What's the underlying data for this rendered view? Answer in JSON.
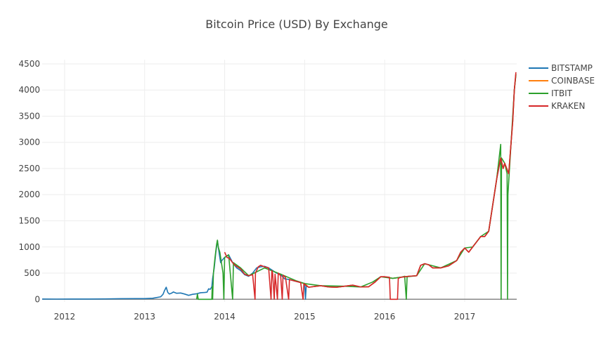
{
  "chart_data": {
    "type": "line",
    "title": "Bitcoin Price (USD) By Exchange",
    "xlabel": "",
    "ylabel": "",
    "xlim": [
      2011.72,
      2017.65
    ],
    "ylim": [
      -50,
      4580
    ],
    "x_ticks": [
      {
        "value": 2012,
        "label": "2012"
      },
      {
        "value": 2013,
        "label": "2013"
      },
      {
        "value": 2014,
        "label": "2014"
      },
      {
        "value": 2015,
        "label": "2015"
      },
      {
        "value": 2016,
        "label": "2016"
      },
      {
        "value": 2017,
        "label": "2017"
      }
    ],
    "y_ticks": [
      {
        "value": 0,
        "label": "0"
      },
      {
        "value": 500,
        "label": "500"
      },
      {
        "value": 1000,
        "label": "1000"
      },
      {
        "value": 1500,
        "label": "1500"
      },
      {
        "value": 2000,
        "label": "2000"
      },
      {
        "value": 2500,
        "label": "2500"
      },
      {
        "value": 3000,
        "label": "3000"
      },
      {
        "value": 3500,
        "label": "3500"
      },
      {
        "value": 4000,
        "label": "4000"
      },
      {
        "value": 4500,
        "label": "4500"
      }
    ],
    "grid": true,
    "legend_position": "top-right",
    "series": [
      {
        "name": "BITSTAMP",
        "color": "#1f77b4",
        "points": [
          [
            2011.72,
            4.8
          ],
          [
            2011.9,
            3.5
          ],
          [
            2012.1,
            5
          ],
          [
            2012.3,
            5
          ],
          [
            2012.5,
            7
          ],
          [
            2012.7,
            11
          ],
          [
            2012.9,
            13
          ],
          [
            2013.0,
            13.5
          ],
          [
            2013.1,
            20
          ],
          [
            2013.2,
            47
          ],
          [
            2013.23,
            95
          ],
          [
            2013.25,
            170
          ],
          [
            2013.27,
            230
          ],
          [
            2013.29,
            130
          ],
          [
            2013.31,
            100
          ],
          [
            2013.34,
            120
          ],
          [
            2013.36,
            140
          ],
          [
            2013.4,
            115
          ],
          [
            2013.45,
            120
          ],
          [
            2013.5,
            100
          ],
          [
            2013.55,
            75
          ],
          [
            2013.6,
            95
          ],
          [
            2013.65,
            105
          ],
          [
            2013.7,
            125
          ],
          [
            2013.75,
            130
          ],
          [
            2013.78,
            135
          ],
          [
            2013.8,
            200
          ],
          [
            2013.82,
            190
          ],
          [
            2013.84,
            240
          ],
          [
            2013.85,
            400
          ],
          [
            2013.87,
            600
          ],
          [
            2013.89,
            900
          ],
          [
            2013.91,
            1120
          ],
          [
            2013.93,
            900
          ],
          [
            2013.95,
            700
          ],
          [
            2013.97,
            750
          ],
          [
            2014.0,
            800
          ],
          [
            2014.05,
            850
          ],
          [
            2014.1,
            700
          ],
          [
            2014.15,
            600
          ],
          [
            2014.2,
            550
          ],
          [
            2014.25,
            470
          ],
          [
            2014.3,
            440
          ],
          [
            2014.35,
            500
          ],
          [
            2014.4,
            600
          ],
          [
            2014.45,
            620
          ],
          [
            2014.5,
            630
          ],
          [
            2014.55,
            600
          ],
          [
            2014.6,
            550
          ],
          [
            2014.65,
            500
          ],
          [
            2014.7,
            470
          ],
          [
            2014.75,
            390
          ],
          [
            2014.8,
            380
          ],
          [
            2014.85,
            360
          ],
          [
            2014.9,
            340
          ],
          [
            2014.95,
            320
          ],
          [
            2015.0,
            300
          ],
          [
            2015.01,
            1
          ],
          [
            2015.02,
            260
          ],
          [
            2015.05,
            230
          ],
          [
            2015.1,
            240
          ],
          [
            2015.2,
            260
          ],
          [
            2015.3,
            235
          ],
          [
            2015.4,
            230
          ],
          [
            2015.5,
            250
          ],
          [
            2015.6,
            270
          ],
          [
            2015.7,
            235
          ],
          [
            2015.8,
            240
          ],
          [
            2015.88,
            330
          ],
          [
            2015.95,
            430
          ],
          [
            2016.0,
            430
          ],
          [
            2016.1,
            400
          ],
          [
            2016.2,
            420
          ],
          [
            2016.3,
            440
          ],
          [
            2016.4,
            450
          ],
          [
            2016.45,
            650
          ],
          [
            2016.5,
            680
          ],
          [
            2016.55,
            660
          ],
          [
            2016.6,
            600
          ],
          [
            2016.7,
            600
          ],
          [
            2016.8,
            640
          ],
          [
            2016.9,
            740
          ],
          [
            2016.95,
            900
          ],
          [
            2017.0,
            980
          ],
          [
            2017.05,
            900
          ],
          [
            2017.1,
            1000
          ],
          [
            2017.15,
            1100
          ],
          [
            2017.2,
            1200
          ],
          [
            2017.25,
            1200
          ],
          [
            2017.3,
            1300
          ],
          [
            2017.35,
            1800
          ],
          [
            2017.4,
            2300
          ],
          [
            2017.45,
            2700
          ],
          [
            2017.48,
            2500
          ],
          [
            2017.5,
            2600
          ],
          [
            2017.55,
            2400
          ],
          [
            2017.58,
            3000
          ],
          [
            2017.6,
            3400
          ],
          [
            2017.62,
            4000
          ],
          [
            2017.64,
            4300
          ]
        ]
      },
      {
        "name": "COINBASE",
        "color": "#ff7f0e",
        "points": [
          [
            2014.95,
            320
          ],
          [
            2015.0,
            300
          ],
          [
            2015.05,
            230
          ],
          [
            2015.1,
            240
          ],
          [
            2015.2,
            260
          ],
          [
            2015.3,
            235
          ],
          [
            2015.4,
            230
          ],
          [
            2015.5,
            250
          ],
          [
            2015.6,
            270
          ],
          [
            2015.7,
            235
          ],
          [
            2015.8,
            240
          ],
          [
            2015.88,
            330
          ],
          [
            2015.95,
            430
          ],
          [
            2016.0,
            430
          ],
          [
            2016.1,
            400
          ],
          [
            2016.2,
            420
          ],
          [
            2016.3,
            440
          ],
          [
            2016.4,
            450
          ],
          [
            2016.45,
            650
          ],
          [
            2016.5,
            680
          ],
          [
            2016.55,
            660
          ],
          [
            2016.6,
            600
          ],
          [
            2016.7,
            600
          ],
          [
            2016.8,
            640
          ],
          [
            2016.9,
            740
          ],
          [
            2016.95,
            900
          ],
          [
            2017.0,
            980
          ],
          [
            2017.05,
            900
          ],
          [
            2017.1,
            1000
          ],
          [
            2017.15,
            1100
          ],
          [
            2017.2,
            1200
          ],
          [
            2017.25,
            1200
          ],
          [
            2017.3,
            1300
          ],
          [
            2017.35,
            1800
          ],
          [
            2017.4,
            2300
          ],
          [
            2017.42,
            2550
          ],
          [
            2017.45,
            2700
          ],
          [
            2017.48,
            2500
          ],
          [
            2017.5,
            2600
          ],
          [
            2017.55,
            2400
          ],
          [
            2017.58,
            3000
          ],
          [
            2017.6,
            3400
          ],
          [
            2017.62,
            4000
          ],
          [
            2017.64,
            4300
          ]
        ]
      },
      {
        "name": "ITBIT",
        "color": "#2ca02c",
        "points": [
          [
            2013.65,
            0
          ],
          [
            2013.66,
            100
          ],
          [
            2013.67,
            0
          ],
          [
            2013.84,
            0
          ],
          [
            2013.845,
            240
          ],
          [
            2013.85,
            0
          ],
          [
            2013.86,
            500
          ],
          [
            2013.88,
            800
          ],
          [
            2013.9,
            1050
          ],
          [
            2013.91,
            1130
          ],
          [
            2013.92,
            1000
          ],
          [
            2013.94,
            900
          ],
          [
            2013.96,
            700
          ],
          [
            2013.98,
            500
          ],
          [
            2013.99,
            0
          ],
          [
            2014.0,
            800
          ],
          [
            2014.05,
            850
          ],
          [
            2014.1,
            0
          ],
          [
            2014.11,
            700
          ],
          [
            2014.2,
            600
          ],
          [
            2014.3,
            450
          ],
          [
            2014.5,
            600
          ],
          [
            2014.7,
            480
          ],
          [
            2014.9,
            350
          ],
          [
            2015.0,
            300
          ],
          [
            2015.2,
            260
          ],
          [
            2015.5,
            250
          ],
          [
            2015.7,
            235
          ],
          [
            2015.85,
            330
          ],
          [
            2015.95,
            430
          ],
          [
            2016.1,
            400
          ],
          [
            2016.2,
            420
          ],
          [
            2016.25,
            440
          ],
          [
            2016.27,
            0
          ],
          [
            2016.28,
            430
          ],
          [
            2016.4,
            450
          ],
          [
            2016.5,
            680
          ],
          [
            2016.7,
            600
          ],
          [
            2016.9,
            740
          ],
          [
            2017.0,
            980
          ],
          [
            2017.1,
            1000
          ],
          [
            2017.2,
            1200
          ],
          [
            2017.3,
            1300
          ],
          [
            2017.35,
            1800
          ],
          [
            2017.4,
            2300
          ],
          [
            2017.45,
            2960
          ],
          [
            2017.455,
            0
          ],
          [
            2017.46,
            2700
          ],
          [
            2017.5,
            2600
          ],
          [
            2017.53,
            2400
          ],
          [
            2017.535,
            0
          ],
          [
            2017.54,
            2000
          ],
          [
            2017.58,
            3000
          ],
          [
            2017.62,
            4000
          ],
          [
            2017.64,
            4300
          ]
        ]
      },
      {
        "name": "KRAKEN",
        "color": "#d62728",
        "points": [
          [
            2014.0,
            900
          ],
          [
            2014.03,
            800
          ],
          [
            2014.06,
            780
          ],
          [
            2014.1,
            700
          ],
          [
            2014.13,
            650
          ],
          [
            2014.16,
            620
          ],
          [
            2014.2,
            580
          ],
          [
            2014.25,
            480
          ],
          [
            2014.3,
            450
          ],
          [
            2014.35,
            470
          ],
          [
            2014.38,
            0
          ],
          [
            2014.385,
            500
          ],
          [
            2014.42,
            620
          ],
          [
            2014.45,
            650
          ],
          [
            2014.5,
            620
          ],
          [
            2014.55,
            600
          ],
          [
            2014.58,
            0
          ],
          [
            2014.59,
            550
          ],
          [
            2014.6,
            500
          ],
          [
            2014.62,
            0
          ],
          [
            2014.63,
            480
          ],
          [
            2014.66,
            0
          ],
          [
            2014.67,
            500
          ],
          [
            2014.7,
            450
          ],
          [
            2014.72,
            0
          ],
          [
            2014.73,
            460
          ],
          [
            2014.76,
            420
          ],
          [
            2014.8,
            0
          ],
          [
            2014.81,
            380
          ],
          [
            2014.85,
            360
          ],
          [
            2014.9,
            340
          ],
          [
            2014.95,
            320
          ],
          [
            2014.98,
            0
          ],
          [
            2014.99,
            300
          ],
          [
            2015.02,
            260
          ],
          [
            2015.05,
            230
          ],
          [
            2015.1,
            240
          ],
          [
            2015.2,
            260
          ],
          [
            2015.3,
            235
          ],
          [
            2015.4,
            230
          ],
          [
            2015.5,
            250
          ],
          [
            2015.6,
            270
          ],
          [
            2015.7,
            235
          ],
          [
            2015.8,
            240
          ],
          [
            2015.88,
            330
          ],
          [
            2015.95,
            430
          ],
          [
            2016.0,
            430
          ],
          [
            2016.06,
            420
          ],
          [
            2016.07,
            0
          ],
          [
            2016.16,
            0
          ],
          [
            2016.17,
            400
          ],
          [
            2016.2,
            420
          ],
          [
            2016.3,
            440
          ],
          [
            2016.4,
            450
          ],
          [
            2016.45,
            650
          ],
          [
            2016.5,
            680
          ],
          [
            2016.55,
            660
          ],
          [
            2016.6,
            600
          ],
          [
            2016.7,
            600
          ],
          [
            2016.8,
            640
          ],
          [
            2016.9,
            740
          ],
          [
            2016.95,
            900
          ],
          [
            2017.0,
            980
          ],
          [
            2017.05,
            900
          ],
          [
            2017.1,
            1000
          ],
          [
            2017.15,
            1100
          ],
          [
            2017.2,
            1200
          ],
          [
            2017.25,
            1200
          ],
          [
            2017.3,
            1300
          ],
          [
            2017.35,
            1800
          ],
          [
            2017.4,
            2300
          ],
          [
            2017.45,
            2700
          ],
          [
            2017.48,
            2500
          ],
          [
            2017.5,
            2600
          ],
          [
            2017.55,
            2400
          ],
          [
            2017.58,
            3000
          ],
          [
            2017.6,
            3400
          ],
          [
            2017.62,
            4000
          ],
          [
            2017.64,
            4340
          ]
        ]
      }
    ]
  }
}
